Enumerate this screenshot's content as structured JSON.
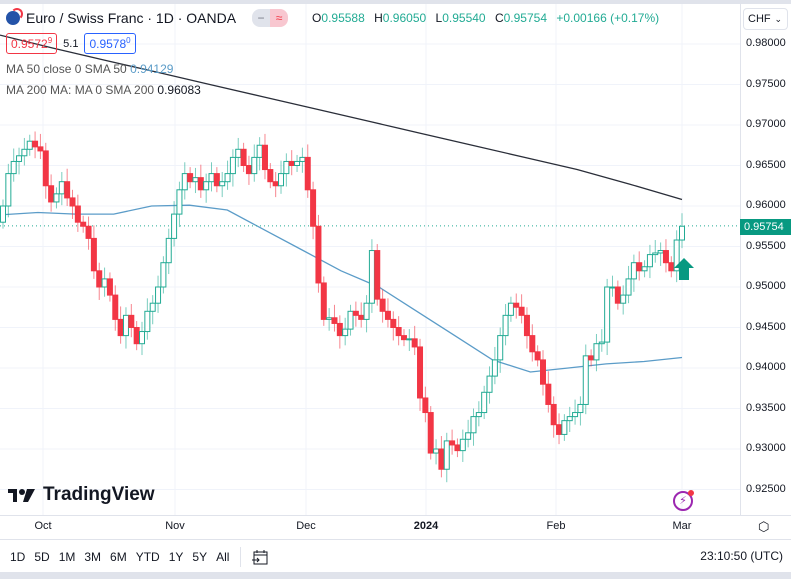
{
  "header": {
    "title": "Euro / Swiss Franc · 1D · OANDA",
    "open_label": "O",
    "open": "0.95588",
    "high_label": "H",
    "high": "0.96050",
    "low_label": "L",
    "low": "0.95540",
    "close_label": "C",
    "close": "0.95754",
    "change": "+0.00166 (+0.17%)",
    "minus_icon": "−",
    "wave_icon": "≈"
  },
  "quotes": {
    "sell": "0.9572",
    "sell_sup": "9",
    "spread": "5.1",
    "buy": "0.9578",
    "buy_sup": "0"
  },
  "indicators": {
    "ma50_label": "MA 50 close 0 SMA 50",
    "ma50_value": "0.94129",
    "ma200_label": "MA 200 MA: MA 0 SMA 200",
    "ma200_value": "0.96083"
  },
  "currency": "CHF",
  "price_axis": [
    "0.98000",
    "0.97500",
    "0.97000",
    "0.96500",
    "0.96000",
    "0.95500",
    "0.95000",
    "0.94500",
    "0.94000",
    "0.93500",
    "0.93000",
    "0.92500"
  ],
  "current_price": "0.95754",
  "time_axis": [
    "Oct",
    "Nov",
    "Dec",
    "2024",
    "Feb",
    "Mar"
  ],
  "ranges": [
    "1D",
    "5D",
    "1M",
    "3M",
    "6M",
    "YTD",
    "1Y",
    "5Y",
    "All"
  ],
  "clock": "23:10:50 (UTC)",
  "logo": "TradingView",
  "colors": {
    "up": "#22ab94",
    "down": "#f23645",
    "ma50": "#5b9cc8",
    "ma200": "#2a2e39"
  },
  "chart_data": {
    "type": "candlestick",
    "ylim": [
      0.9225,
      0.9825
    ],
    "closes": [
      0.96,
      0.964,
      0.9655,
      0.9662,
      0.967,
      0.968,
      0.9673,
      0.9668,
      0.9625,
      0.9605,
      0.9615,
      0.963,
      0.961,
      0.96,
      0.958,
      0.9575,
      0.956,
      0.952,
      0.95,
      0.951,
      0.949,
      0.946,
      0.944,
      0.9465,
      0.945,
      0.943,
      0.9445,
      0.947,
      0.948,
      0.95,
      0.953,
      0.956,
      0.959,
      0.962,
      0.964,
      0.963,
      0.9635,
      0.962,
      0.963,
      0.964,
      0.9625,
      0.963,
      0.964,
      0.966,
      0.967,
      0.965,
      0.964,
      0.966,
      0.9675,
      0.9645,
      0.963,
      0.9625,
      0.964,
      0.9655,
      0.965,
      0.9655,
      0.966,
      0.962,
      0.9575,
      0.9505,
      0.946,
      0.9462,
      0.9455,
      0.944,
      0.9448,
      0.947,
      0.9465,
      0.946,
      0.948,
      0.9545,
      0.9485,
      0.947,
      0.946,
      0.945,
      0.944,
      0.9435,
      0.9436,
      0.9426,
      0.9363,
      0.9345,
      0.9295,
      0.93,
      0.9275,
      0.931,
      0.9305,
      0.9298,
      0.9312,
      0.932,
      0.934,
      0.9345,
      0.937,
      0.939,
      0.941,
      0.944,
      0.9465,
      0.948,
      0.9475,
      0.9465,
      0.944,
      0.942,
      0.941,
      0.938,
      0.9355,
      0.933,
      0.9318,
      0.9335,
      0.934,
      0.9345,
      0.9355,
      0.9415,
      0.941,
      0.943,
      0.9432,
      0.95,
      0.95,
      0.948,
      0.949,
      0.951,
      0.953,
      0.952,
      0.9525,
      0.954,
      0.9542,
      0.9545,
      0.953,
      0.952,
      0.9558,
      0.9575
    ],
    "ma50": [
      0.9589,
      0.9592,
      0.959,
      0.959,
      0.96,
      0.9601,
      0.9595,
      0.957,
      0.9545,
      0.952,
      0.95,
      0.947,
      0.944,
      0.941,
      0.9395,
      0.94,
      0.9405,
      0.9408,
      0.9413
    ],
    "ma200": [
      0.9811,
      0.9795,
      0.978,
      0.9765,
      0.975,
      0.9735,
      0.972,
      0.9705,
      0.969,
      0.9675,
      0.966,
      0.9645,
      0.9627,
      0.9608
    ]
  }
}
